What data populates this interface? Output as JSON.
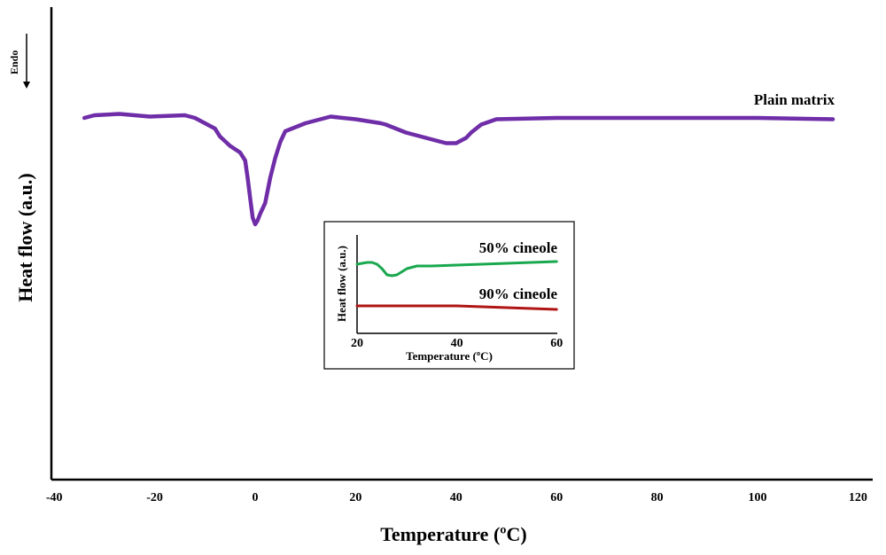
{
  "chart_data": [
    {
      "type": "line",
      "xlabel": "Temperature (ºC)",
      "ylabel": "Heat flow (a.u.)",
      "endo_label": "Endo",
      "xlim": [
        -40,
        120
      ],
      "x_ticks": [
        -40,
        -20,
        0,
        20,
        40,
        60,
        80,
        100,
        120
      ],
      "tick_labels": [
        "-40",
        "-20",
        "0",
        "20",
        "40",
        "60",
        "80",
        "100",
        "120"
      ],
      "series": [
        {
          "name": "Plain matrix",
          "color": "#6f2da8",
          "x": [
            -34,
            -32,
            -27,
            -21,
            -14,
            -12,
            -10,
            -8,
            -7,
            -5,
            -3,
            -2,
            -1.5,
            -1,
            -0.5,
            0,
            0.5,
            1,
            2,
            3,
            4,
            5,
            6,
            10,
            15,
            20,
            25,
            26,
            30,
            35,
            38,
            40,
            42,
            43,
            45,
            48,
            60,
            80,
            100,
            115
          ],
          "y": [
            0.0,
            0.02,
            0.03,
            0.01,
            0.02,
            0.0,
            -0.04,
            -0.08,
            -0.14,
            -0.21,
            -0.26,
            -0.32,
            -0.45,
            -0.6,
            -0.75,
            -0.8,
            -0.77,
            -0.72,
            -0.64,
            -0.45,
            -0.3,
            -0.18,
            -0.1,
            -0.04,
            0.01,
            -0.01,
            -0.04,
            -0.05,
            -0.11,
            -0.16,
            -0.19,
            -0.19,
            -0.15,
            -0.11,
            -0.05,
            -0.01,
            0.0,
            0.0,
            0.0,
            -0.01
          ]
        }
      ]
    },
    {
      "type": "line",
      "xlabel": "Temperature (ºC)",
      "ylabel": "Heat flow (a.u.)",
      "xlim": [
        20,
        60
      ],
      "x_ticks": [
        20,
        40,
        60
      ],
      "tick_labels": [
        "20",
        "40",
        "60"
      ],
      "series": [
        {
          "name": "50% cineole",
          "color": "#1aa84f",
          "x": [
            20,
            21,
            22,
            23,
            24,
            25,
            26,
            27,
            28,
            30,
            32,
            35,
            40,
            45,
            50,
            55,
            60
          ],
          "y": [
            0.0,
            0.01,
            0.02,
            0.02,
            0.0,
            -0.05,
            -0.12,
            -0.13,
            -0.12,
            -0.05,
            -0.02,
            -0.02,
            -0.01,
            0.0,
            0.01,
            0.02,
            0.03
          ]
        },
        {
          "name": "90% cineole",
          "color": "#b01515",
          "x": [
            20,
            25,
            30,
            35,
            40,
            45,
            50,
            55,
            60
          ],
          "y": [
            0.0,
            0.0,
            0.0,
            0.0,
            0.0,
            -0.01,
            -0.02,
            -0.03,
            -0.04
          ]
        }
      ]
    }
  ]
}
